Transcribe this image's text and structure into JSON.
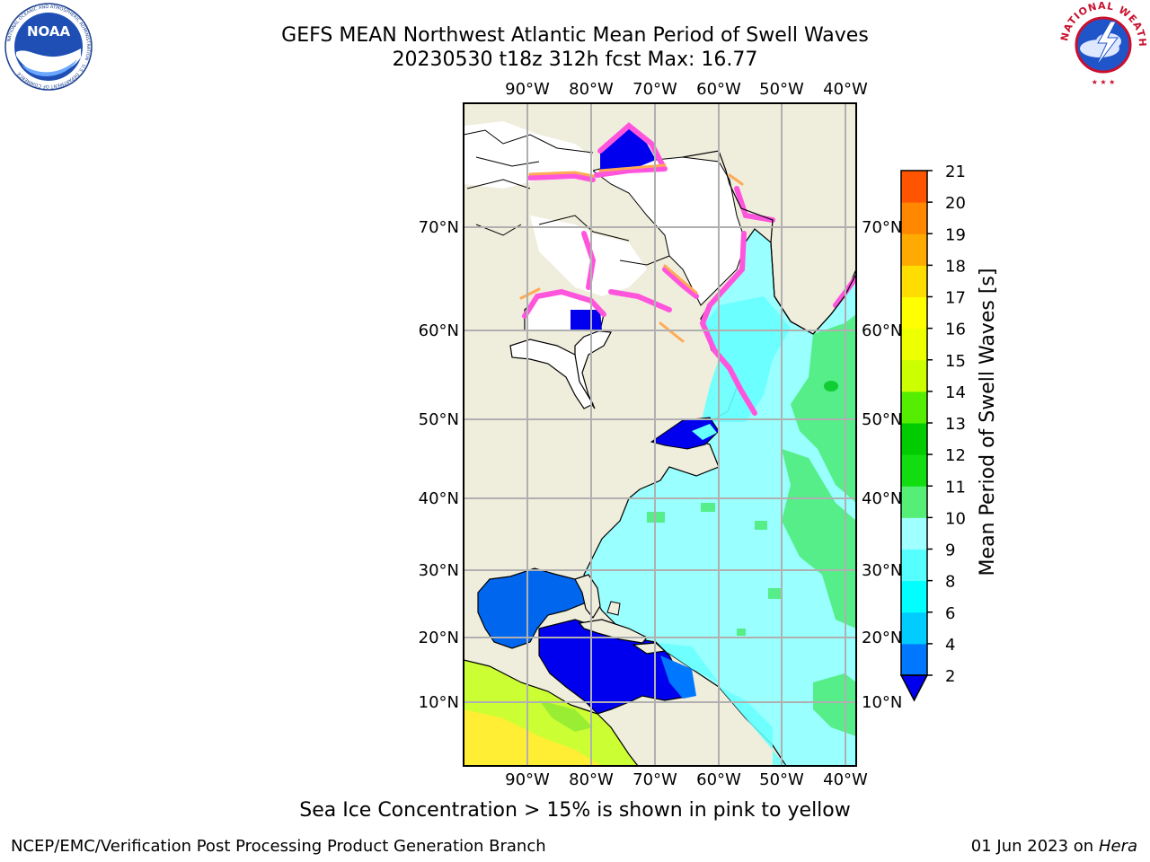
{
  "header": {
    "title_line1": "GEFS MEAN Northwest Atlantic Mean Period of Swell Waves",
    "title_line2": "20230530 t18z 312h fcst   Max: 16.77"
  },
  "logos": {
    "left": "noaa-logo",
    "left_text": "NOAA",
    "left_ring_text": "NATIONAL OCEANIC AND ATMOSPHERIC ADMINISTRATION · U.S. DEPARTMENT OF COMMERCE",
    "right": "nws-logo",
    "right_ring_text": "NATIONAL WEATHER SERVICE"
  },
  "map": {
    "lon_labels": [
      "90°W",
      "80°W",
      "70°W",
      "60°W",
      "50°W",
      "40°W"
    ],
    "lat_labels": [
      "70°N",
      "60°N",
      "50°N",
      "40°N",
      "30°N",
      "20°N",
      "10°N"
    ],
    "colors": {
      "land": "#efeddc",
      "ice_white": "#ffffff",
      "ice_edge_pink": "#ff55dd",
      "ice_edge_orange": "#ffaa55",
      "ocean_low": "#66ffff",
      "ocean_mid": "#99ffff",
      "ocean_high": "#55ee88",
      "blue_dark": "#0000ee",
      "blue_mid": "#0077ff",
      "south_america": "#ccff33",
      "grid": "#b0b0b0"
    }
  },
  "colorbar": {
    "label": "Mean Period of Swell Waves [s]",
    "ticks": [
      "2",
      "4",
      "6",
      "8",
      "9",
      "10",
      "11",
      "12",
      "13",
      "14",
      "15",
      "16",
      "17",
      "18",
      "19",
      "20",
      "21"
    ],
    "colors": [
      "#0077ff",
      "#00ccff",
      "#00ffff",
      "#55ffff",
      "#a0ffff",
      "#55ee77",
      "#11dd11",
      "#00cc00",
      "#55ee00",
      "#ccff00",
      "#eeff00",
      "#ffff00",
      "#ffdd00",
      "#ffaa00",
      "#ff8800",
      "#ff5500",
      "#ff2200",
      "#ff0000"
    ],
    "under_color": "#0000ee"
  },
  "footer": {
    "note": "Sea Ice Concentration > 15% is shown in pink to yellow",
    "credit": "NCEP/EMC/Verification Post Processing Product Generation Branch",
    "date": "01 Jun 2023 on",
    "machine": "Hera"
  }
}
